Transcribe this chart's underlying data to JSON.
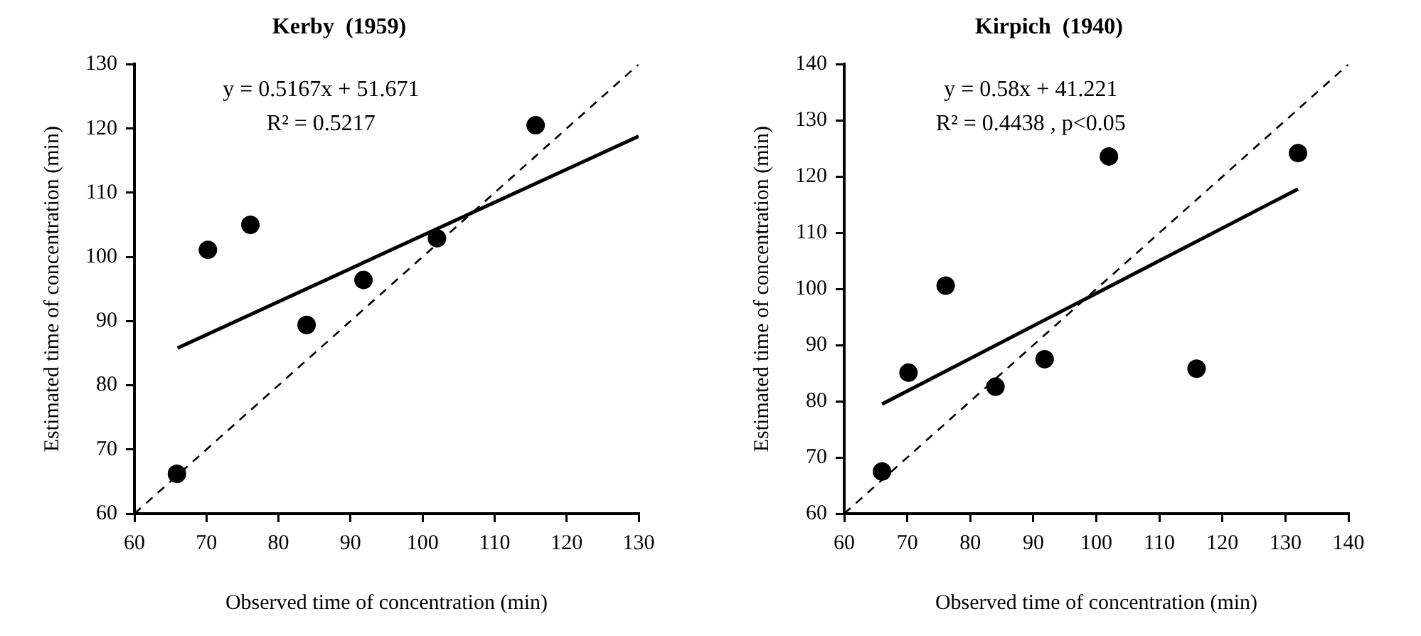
{
  "chart_data": [
    {
      "type": "scatter",
      "title": "Kerby  (1959)",
      "xlabel": "Observed time of concentration (min)",
      "ylabel": "Estimated time of concentration (min)",
      "xlim": [
        60,
        130
      ],
      "xticks": [
        60,
        70,
        80,
        90,
        100,
        110,
        120,
        130
      ],
      "ylim": [
        60,
        130
      ],
      "yticks": [
        60,
        70,
        80,
        90,
        100,
        110,
        120,
        130
      ],
      "grid": false,
      "legend": false,
      "annotations": [
        "y = 0.5167x + 51.671",
        "R² = 0.5217"
      ],
      "series": [
        {
          "type": "scatter",
          "color": "#000000",
          "marker": "circle",
          "x": [
            65.9,
            70.2,
            76.1,
            83.9,
            91.8,
            102,
            115.7
          ],
          "values": [
            66.2,
            101.1,
            105,
            89.4,
            96.4,
            102.9,
            120.5
          ]
        },
        {
          "type": "line",
          "color": "#000000",
          "marker": "none",
          "line_style": "solid",
          "x": [
            66,
            130
          ],
          "values": [
            85.8,
            118.8
          ]
        },
        {
          "type": "line",
          "color": "#000000",
          "marker": "none",
          "line_style": "dashed",
          "x": [
            60,
            130
          ],
          "values": [
            60,
            130
          ]
        }
      ]
    },
    {
      "type": "scatter",
      "title": "Kirpich  (1940)",
      "xlabel": "Observed time of concentration (min)",
      "ylabel": "Estimated time of concentration (min)",
      "xlim": [
        60,
        140
      ],
      "xticks": [
        60,
        70,
        80,
        90,
        100,
        110,
        120,
        130,
        140
      ],
      "ylim": [
        60,
        140
      ],
      "yticks": [
        60,
        70,
        80,
        90,
        100,
        110,
        120,
        130,
        140
      ],
      "grid": false,
      "legend": false,
      "annotations": [
        "y = 0.58x + 41.221",
        "R² = 0.4438 , p<0.05"
      ],
      "series": [
        {
          "type": "scatter",
          "color": "#000000",
          "marker": "circle",
          "x": [
            66,
            70.2,
            76.1,
            84,
            91.8,
            102,
            115.9,
            132
          ],
          "values": [
            67.5,
            85.1,
            100.6,
            82.6,
            87.5,
            123.6,
            85.8,
            124.2
          ]
        },
        {
          "type": "line",
          "color": "#000000",
          "marker": "none",
          "line_style": "solid",
          "x": [
            66,
            132
          ],
          "values": [
            79.5,
            117.8
          ]
        },
        {
          "type": "line",
          "color": "#000000",
          "marker": "none",
          "line_style": "dashed",
          "x": [
            60,
            140
          ],
          "values": [
            60,
            140
          ]
        }
      ]
    }
  ]
}
